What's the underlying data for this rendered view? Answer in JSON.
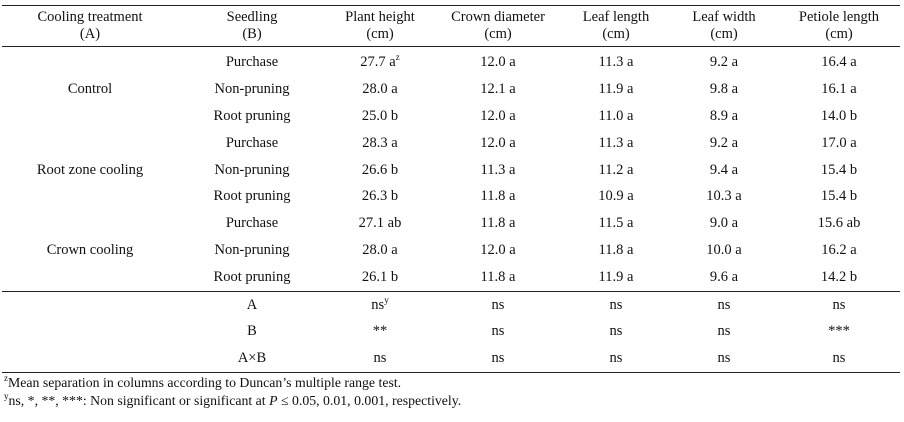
{
  "header": {
    "col_a": [
      "Cooling treatment",
      "(A)"
    ],
    "col_b": [
      "Seedling",
      "(B)"
    ],
    "col_height": [
      "Plant height",
      "(cm)"
    ],
    "col_crown": [
      "Crown diameter",
      "(cm)"
    ],
    "col_leaf_len": [
      "Leaf length",
      "(cm)"
    ],
    "col_leaf_wid": [
      "Leaf width",
      "(cm)"
    ],
    "col_petiole": [
      "Petiole length",
      "(cm)"
    ]
  },
  "groups": [
    "Control",
    "Root zone cooling",
    "Crown cooling"
  ],
  "rows": [
    {
      "seedling": "Purchase",
      "height": "27.7 a",
      "height_sup": "z",
      "crown": "12.0 a",
      "leaf_len": "11.3 a",
      "leaf_wid": "9.2 a",
      "petiole": "16.4 a"
    },
    {
      "seedling": "Non-pruning",
      "height": "28.0 a",
      "crown": "12.1 a",
      "leaf_len": "11.9 a",
      "leaf_wid": "9.8 a",
      "petiole": "16.1 a"
    },
    {
      "seedling": "Root pruning",
      "height": "25.0 b",
      "crown": "12.0 a",
      "leaf_len": "11.0 a",
      "leaf_wid": "8.9 a",
      "petiole": "14.0 b"
    },
    {
      "seedling": "Purchase",
      "height": "28.3 a",
      "crown": "12.0 a",
      "leaf_len": "11.3 a",
      "leaf_wid": "9.2 a",
      "petiole": "17.0 a"
    },
    {
      "seedling": "Non-pruning",
      "height": "26.6 b",
      "crown": "11.3 a",
      "leaf_len": "11.2 a",
      "leaf_wid": "9.4 a",
      "petiole": "15.4 b"
    },
    {
      "seedling": "Root pruning",
      "height": "26.3 b",
      "crown": "11.8 a",
      "leaf_len": "10.9 a",
      "leaf_wid": "10.3 a",
      "petiole": "15.4 b"
    },
    {
      "seedling": "Purchase",
      "height": "27.1 ab",
      "crown": "11.8 a",
      "leaf_len": "11.5 a",
      "leaf_wid": "9.0 a",
      "petiole": "15.6 ab"
    },
    {
      "seedling": "Non-pruning",
      "height": "28.0 a",
      "crown": "12.0 a",
      "leaf_len": "11.8 a",
      "leaf_wid": "10.0 a",
      "petiole": "16.2 a"
    },
    {
      "seedling": "Root pruning",
      "height": "26.1 b",
      "crown": "11.8 a",
      "leaf_len": "11.9 a",
      "leaf_wid": "9.6 a",
      "petiole": "14.2 b"
    }
  ],
  "stats": [
    {
      "label": "A",
      "height": "ns",
      "height_sup": "y",
      "crown": "ns",
      "leaf_len": "ns",
      "leaf_wid": "ns",
      "petiole": "ns"
    },
    {
      "label": "B",
      "height": "**",
      "crown": "ns",
      "leaf_len": "ns",
      "leaf_wid": "ns",
      "petiole": "***"
    },
    {
      "label": "A×B",
      "height": "ns",
      "crown": "ns",
      "leaf_len": "ns",
      "leaf_wid": "ns",
      "petiole": "ns"
    }
  ],
  "footnotes": {
    "z_mark": "z",
    "z_text": "Mean separation in columns according to Duncan’s multiple range test.",
    "y_mark": "y",
    "y_text_a": "ns, *, **, ***: Non significant or significant at ",
    "y_text_p": "P",
    "y_text_b": " ≤ 0.05, 0.01, 0.001, respectively."
  }
}
